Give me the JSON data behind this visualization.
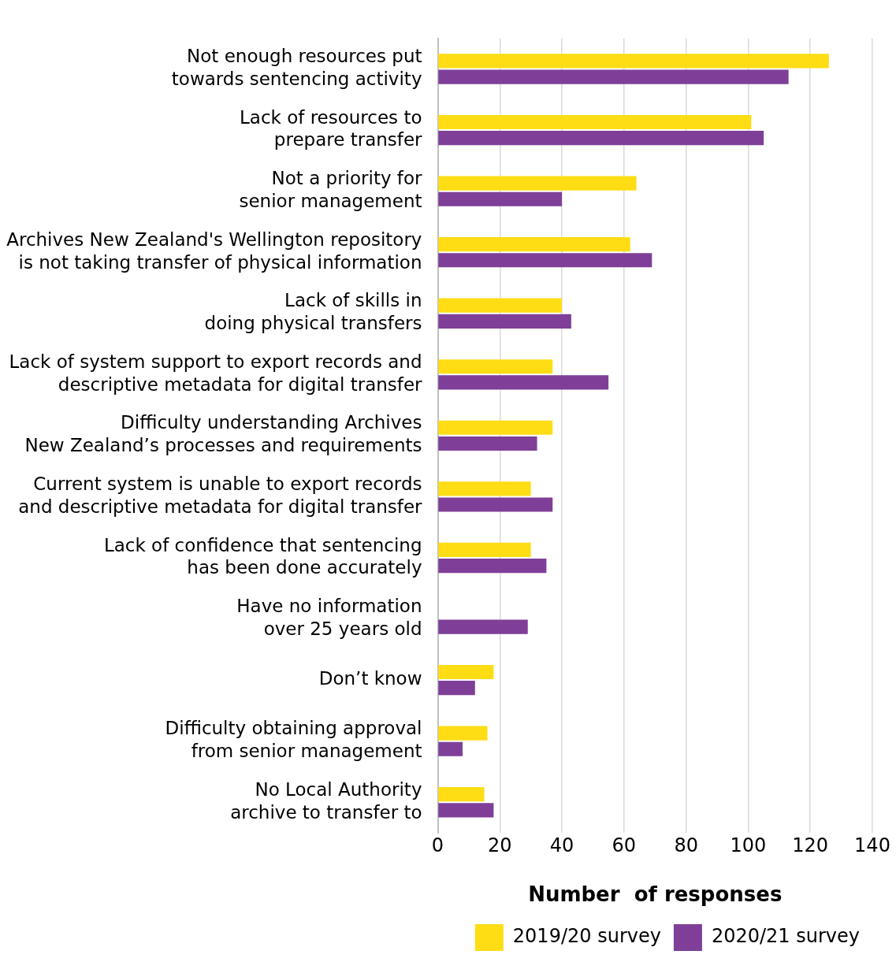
{
  "chart_data": {
    "type": "bar",
    "orientation": "horizontal",
    "xlabel": "Number  of responses",
    "categories": [
      "Not enough resources put\ntowards sentencing activity",
      "Lack of resources to\nprepare transfer",
      "Not a priority for\nsenior management",
      "Archives New Zealand's Wellington repository\nis not taking transfer of physical information",
      "Lack of skills in\ndoing physical transfers",
      "Lack of system support to export records and\ndescriptive metadata for digital transfer",
      "Difficulty understanding Archives\nNew Zealand’s processes and requirements",
      "Current system is unable to export records\nand descriptive metadata for digital transfer",
      "Lack of confidence that sentencing\nhas been done accurately",
      "Have no information\nover 25 years old",
      "Don’t know",
      "Difficulty obtaining approval\nfrom senior management",
      "No Local Authority\narchive to transfer to"
    ],
    "series": [
      {
        "name": "2019/20 survey",
        "color": "#ffdd15",
        "values": [
          126,
          101,
          64,
          62,
          40,
          37,
          37,
          30,
          30,
          null,
          18,
          16,
          15
        ]
      },
      {
        "name": "2020/21 survey",
        "color": "#7f3f98",
        "values": [
          113,
          105,
          40,
          69,
          43,
          55,
          32,
          37,
          35,
          29,
          12,
          8,
          18
        ]
      }
    ],
    "xlim": [
      0,
      140
    ],
    "xticks": [
      0,
      20,
      40,
      60,
      80,
      100,
      120,
      140
    ],
    "grid": "x",
    "legend": "bottom right"
  }
}
